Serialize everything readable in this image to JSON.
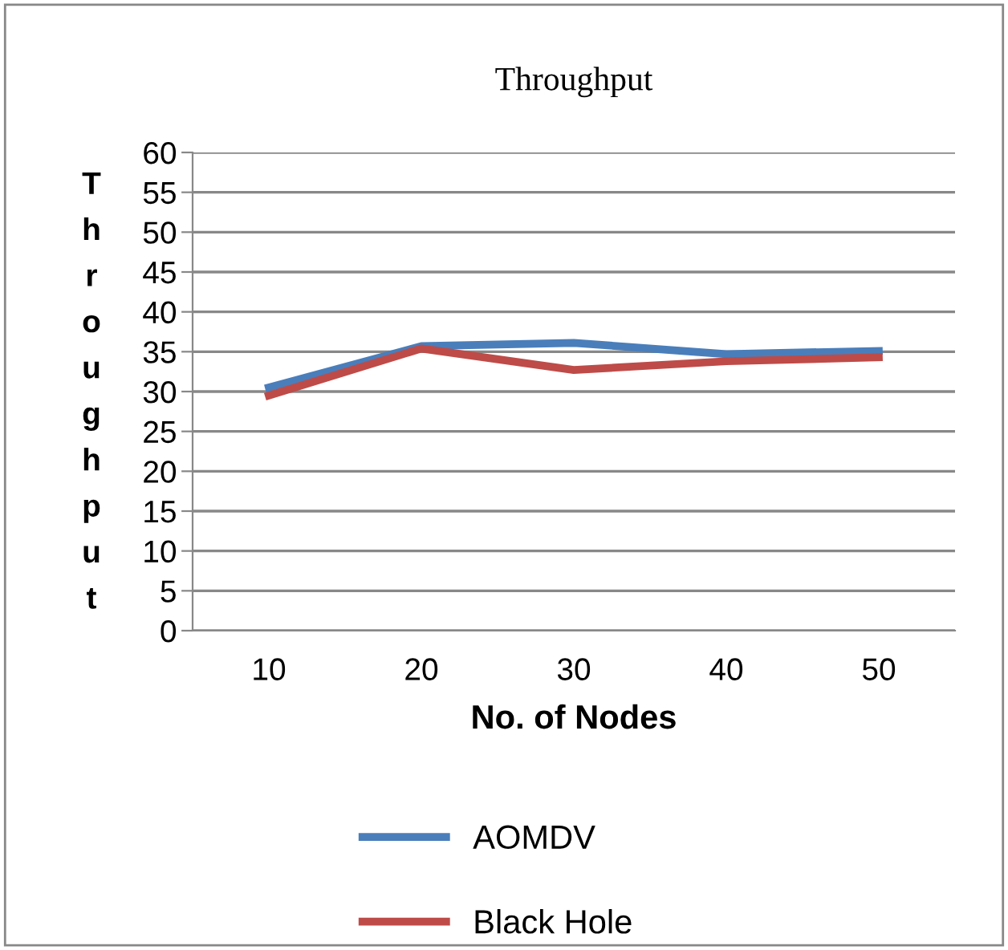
{
  "chart_data": {
    "type": "line",
    "title": "Throughput",
    "xlabel": "No. of Nodes",
    "ylabel": "Throughput",
    "categories": [
      "10",
      "20",
      "30",
      "40",
      "50"
    ],
    "series": [
      {
        "name": "AOMDV",
        "color": "#4a7ebb",
        "values": [
          30.5,
          35.7,
          36.1,
          34.7,
          35.1
        ]
      },
      {
        "name": "Black Hole",
        "color": "#be4b48",
        "values": [
          29.5,
          35.4,
          32.7,
          33.8,
          34.3
        ]
      }
    ],
    "ylim": [
      0,
      60
    ],
    "yticks": [
      0,
      5,
      10,
      15,
      20,
      25,
      30,
      35,
      40,
      45,
      50,
      55,
      60
    ],
    "grid": "y",
    "legend": "bottom",
    "marker": "none",
    "line_style": "solid"
  }
}
